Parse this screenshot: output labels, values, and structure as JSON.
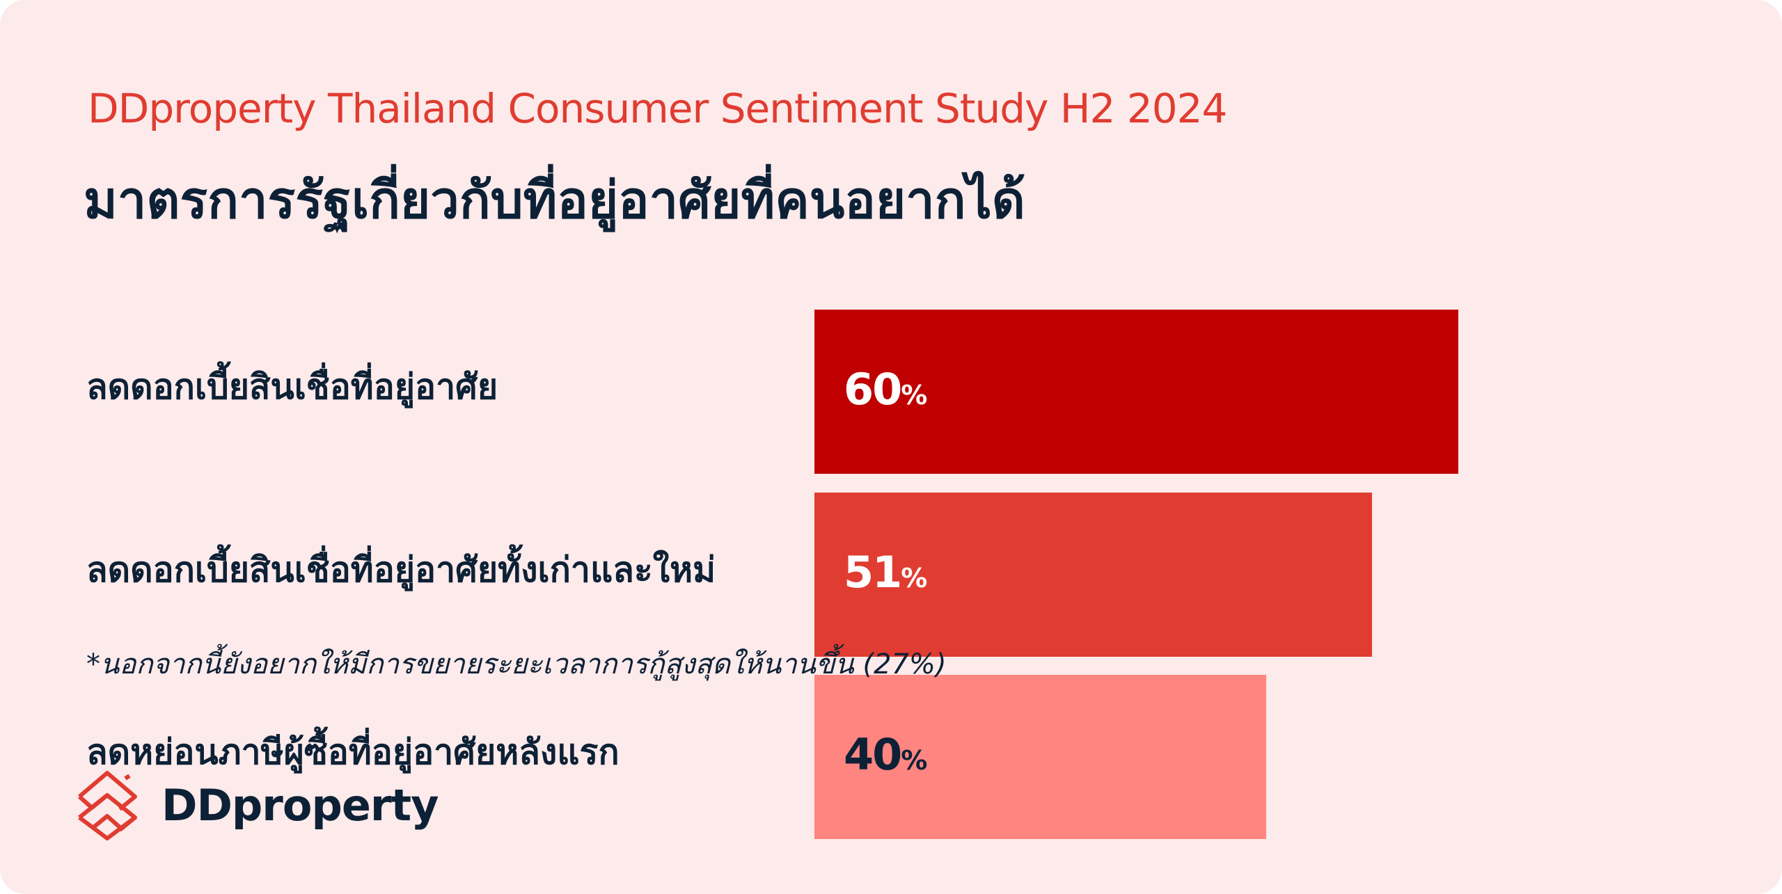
{
  "header": {
    "subtitle": "DDproperty Thailand Consumer Sentiment Study H2 2024",
    "title": "มาตรการรัฐเกี่ยวกับที่อยู่อาศัยที่คนอยากได้"
  },
  "chart_data": {
    "type": "bar",
    "orientation": "horizontal",
    "title": "มาตรการรัฐเกี่ยวกับที่อยู่อาศัยที่คนอยากได้",
    "categories": [
      "ลดดอกเบี้ยสินเชื่อที่อยู่อาศัย",
      "ลดดอกเบี้ยสินเชื่อที่อยู่อาศัยทั้งเก่าและใหม่",
      "ลดหย่อนภาษีผู้ซื้อที่อยู่อาศัยหลังแรก"
    ],
    "values": [
      60,
      51,
      40
    ],
    "value_labels": [
      "60",
      "51",
      "40"
    ],
    "unit": "%",
    "colors": [
      "#c00000",
      "#e03c31",
      "#ff8580"
    ],
    "label_colors": [
      "#ffffff",
      "#ffffff",
      "#0d2136"
    ],
    "xlabel": "",
    "ylabel": ""
  },
  "footnote": "*นอกจากนี้ยังอยากให้มีการขยายระยะเวลาการกู้สูงสุดให้นานขึ้น (27%)",
  "logo": {
    "text": "DDproperty",
    "icon": "ddproperty-house-logo-icon"
  }
}
